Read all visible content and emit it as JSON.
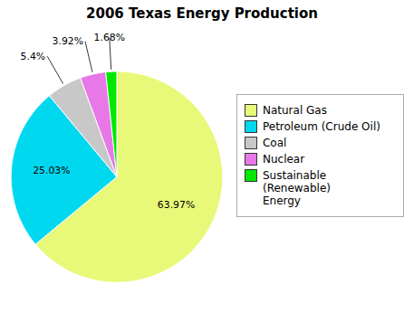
{
  "chart_data": {
    "type": "pie",
    "title": "2006 Texas Energy Production",
    "categories": [
      "Natural Gas",
      "Petroleum (Crude Oil)",
      "Coal",
      "Nuclear",
      "Sustainable (Renewable)\nEnergy"
    ],
    "values": [
      63.97,
      25.03,
      5.4,
      3.92,
      1.68
    ],
    "value_labels": [
      "63.97%",
      "25.03%",
      "5.4%",
      "3.92%",
      "1.68%"
    ],
    "colors": [
      "#e8f878",
      "#00d8f0",
      "#c8c8c8",
      "#e878e8",
      "#00e800"
    ],
    "data_labels": true,
    "legend": "right"
  }
}
